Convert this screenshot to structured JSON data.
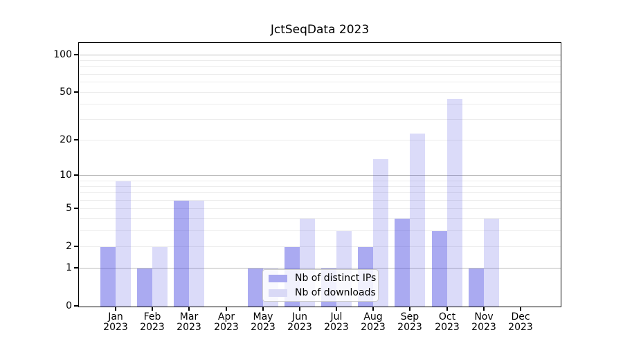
{
  "chart_data": {
    "type": "bar",
    "title": "JctSeqData 2023",
    "year_label": "2023",
    "categories": [
      "Jan",
      "Feb",
      "Mar",
      "Apr",
      "May",
      "Jun",
      "Jul",
      "Aug",
      "Sep",
      "Oct",
      "Nov",
      "Dec"
    ],
    "series": [
      {
        "name": "Nb of distinct IPs",
        "slug": "distinct-ips",
        "color": "#a9a9f0",
        "fill_rgba": "rgba(62,62,224,0.44)",
        "values": [
          2,
          1,
          6,
          0,
          1,
          2,
          1,
          2,
          4,
          3,
          1,
          0
        ]
      },
      {
        "name": "Nb of downloads",
        "slug": "downloads",
        "color": "#d9d9f6",
        "fill_rgba": "rgba(62,62,224,0.19)",
        "values": [
          9,
          2,
          6,
          0,
          1,
          4,
          3,
          14,
          23,
          44,
          4,
          0
        ]
      }
    ],
    "y_axis": {
      "scale": "log1p",
      "min": 0,
      "max": 124,
      "labeled_ticks": [
        0,
        1,
        2,
        5,
        10,
        20,
        50,
        100
      ],
      "major_gridlines": [
        1,
        10,
        100
      ],
      "minor_gridlines": [
        2,
        3,
        4,
        5,
        6,
        7,
        8,
        9,
        20,
        30,
        40,
        50,
        60,
        70,
        80,
        90
      ]
    },
    "legend": {
      "position": "lower center",
      "entries": [
        "Nb of distinct IPs",
        "Nb of downloads"
      ]
    },
    "colors": {
      "major_grid": "#bbbbbb",
      "minor_grid": "#ececec",
      "axis": "#000000",
      "text": "#000000",
      "background": "#ffffff"
    }
  }
}
